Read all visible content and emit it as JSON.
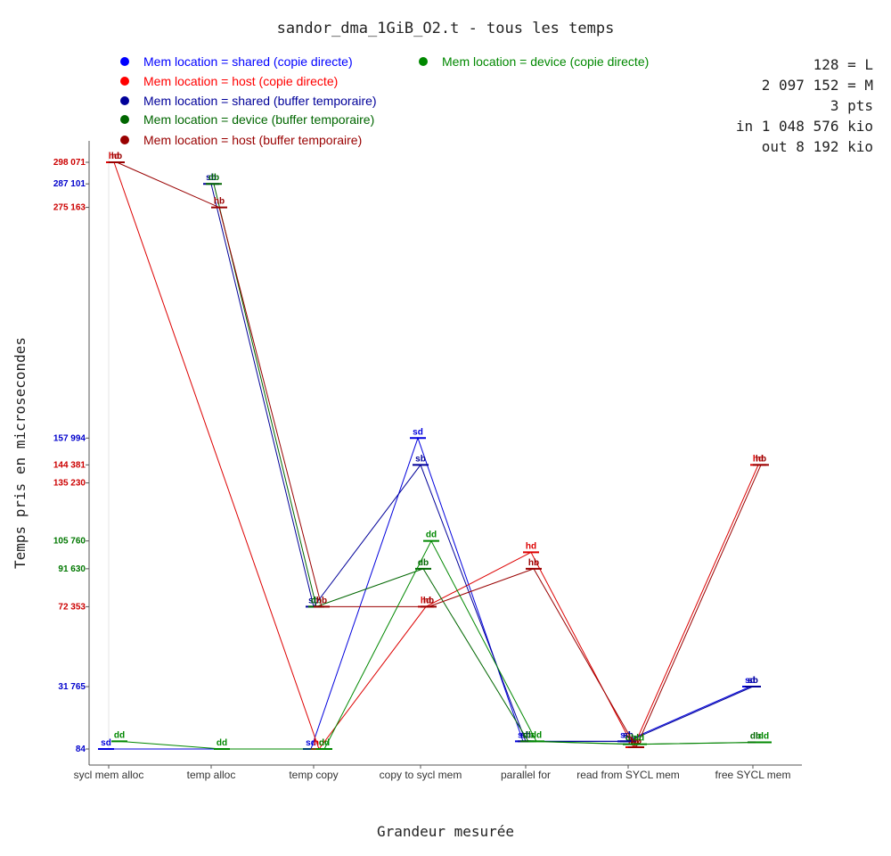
{
  "chart_data": {
    "type": "line",
    "title": "sandor_dma_1GiB_O2.t - tous les temps",
    "xlabel": "Grandeur mesurée",
    "ylabel": "Temps pris en microsecondes",
    "categories": [
      "sycl mem alloc",
      "temp alloc",
      "temp copy",
      "copy to sycl mem",
      "parallel for",
      "read from SYCL mem",
      "free SYCL mem"
    ],
    "ylim": [
      84,
      298071
    ],
    "info_lines": [
      "128 = L",
      "2 097 152 = M",
      "3 pts",
      "in 1 048 576 kio",
      "out 8 192 kio"
    ],
    "legend_placement": "top-left",
    "y_ticks": [
      {
        "value": 298071,
        "label": "298 071",
        "color": "#cc0000"
      },
      {
        "value": 287101,
        "label": "287 101",
        "color": "#0000cc"
      },
      {
        "value": 275163,
        "label": "275 163",
        "color": "#cc0000"
      },
      {
        "value": 157994,
        "label": "157 994",
        "color": "#0000cc"
      },
      {
        "value": 144381,
        "label": "144 381",
        "color": "#cc0000"
      },
      {
        "value": 135230,
        "label": "135 230",
        "color": "#cc0000"
      },
      {
        "value": 105760,
        "label": "105 760",
        "color": "#007700"
      },
      {
        "value": 91630,
        "label": "91 630",
        "color": "#007700"
      },
      {
        "value": 72353,
        "label": "72 353",
        "color": "#cc0000"
      },
      {
        "value": 31765,
        "label": "31 765",
        "color": "#0000cc"
      },
      {
        "value": 84,
        "label": "84",
        "color": "#0000cc"
      }
    ],
    "series": [
      {
        "name": "Mem location = shared (copie directe)",
        "short": "sd",
        "color": "#0000dd",
        "legend_color": "#0000ff",
        "values": [
          84,
          null,
          84,
          157994,
          4000,
          4000,
          31765
        ],
        "errors": [
          0,
          0,
          0,
          0,
          0,
          0,
          0
        ]
      },
      {
        "name": "Mem location = host (copie directe)",
        "short": "hd",
        "color": "#dd0000",
        "legend_color": "#ff0000",
        "values": [
          298071,
          null,
          84,
          72353,
          100000,
          1000,
          144381
        ],
        "errors": [
          0,
          0,
          0,
          0,
          0,
          0,
          0
        ]
      },
      {
        "name": "Mem location = shared (buffer temporaire)",
        "short": "sb",
        "color": "#000099",
        "legend_color": "#000099",
        "values": [
          null,
          287101,
          72353,
          144381,
          4000,
          4000,
          31765
        ],
        "errors": [
          0,
          0,
          0,
          0,
          0,
          0,
          0
        ]
      },
      {
        "name": "Mem location = device (buffer temporaire)",
        "short": "db",
        "color": "#006600",
        "legend_color": "#006600",
        "values": [
          null,
          287101,
          72353,
          91630,
          4000,
          2500,
          3500
        ],
        "errors": [
          0,
          0,
          0,
          0,
          0,
          0,
          0
        ]
      },
      {
        "name": "Mem location = host (buffer temporaire)",
        "short": "hb",
        "color": "#990000",
        "legend_color": "#990000",
        "values": [
          298071,
          275163,
          72353,
          72353,
          91630,
          1000,
          144381
        ],
        "errors": [
          0,
          0,
          0,
          0,
          0,
          0,
          0
        ]
      },
      {
        "name": "Mem location = device (copie directe)",
        "short": "dd",
        "color": "#008800",
        "legend_color": "#008800",
        "values": [
          4000,
          84,
          84,
          105760,
          4000,
          2500,
          3500
        ],
        "errors": [
          0,
          0,
          0,
          0,
          0,
          0,
          0
        ]
      }
    ]
  }
}
